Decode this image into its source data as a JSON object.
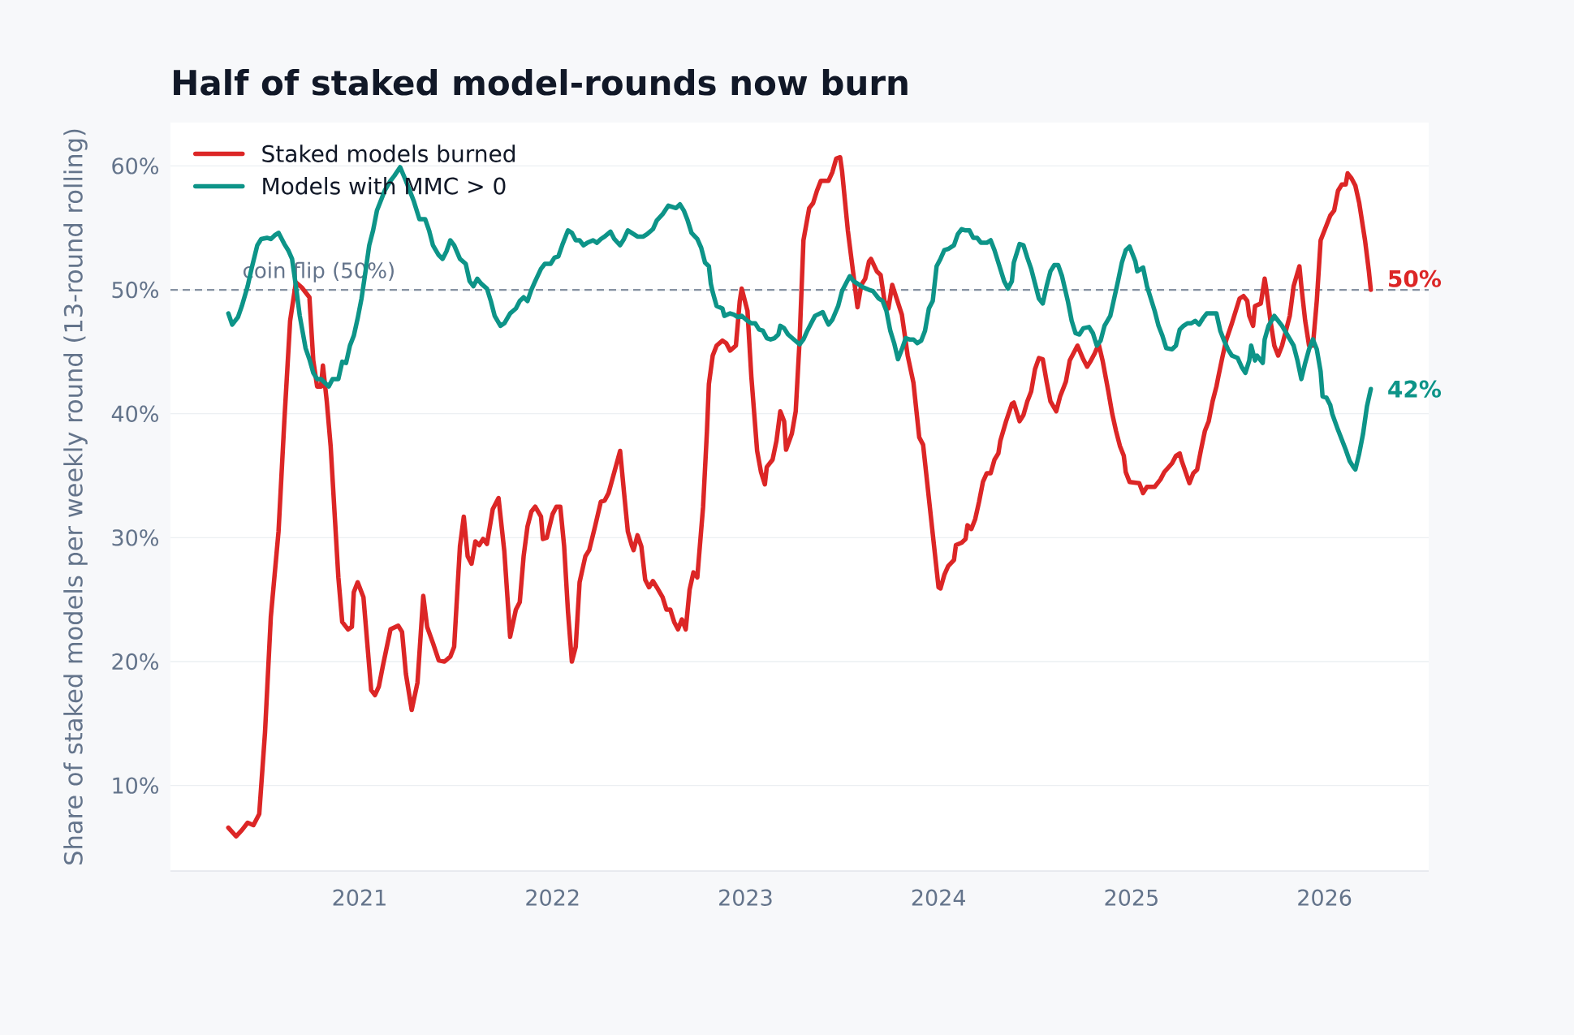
{
  "chart_data": {
    "type": "line",
    "title": "Half of staked model-rounds now burn",
    "ylabel": "Share of staked models per weekly round (13-round rolling)",
    "xlim": [
      2020.02,
      2026.54
    ],
    "xticks": [
      2021,
      2022,
      2023,
      2024,
      2025,
      2026
    ],
    "ylim": [
      3.1,
      63.5
    ],
    "yticks": [
      {
        "value": 10,
        "label": "10%"
      },
      {
        "value": 20,
        "label": "20%"
      },
      {
        "value": 30,
        "label": "30%"
      },
      {
        "value": 40,
        "label": "40%"
      },
      {
        "value": 50,
        "label": "50%"
      },
      {
        "value": 60,
        "label": "60%"
      }
    ],
    "grid": "y",
    "legend": "top left",
    "ref_lines": [
      {
        "axis": "y",
        "value": 50,
        "label": "coin flip (50%)",
        "color": "#8792a2",
        "line_style": "dashed"
      }
    ],
    "series": [
      {
        "name": "Staked models burned",
        "color": "#dc2626",
        "x": [
          2020.32,
          2020.36,
          2020.39,
          2020.42,
          2020.45,
          2020.48,
          2020.51,
          2020.54,
          2020.58,
          2020.61,
          2020.64,
          2020.67,
          2020.7,
          2020.74,
          2020.76,
          2020.78,
          2020.8,
          2020.81,
          2020.83,
          2020.85,
          2020.89,
          2020.91,
          2020.94,
          2020.96,
          2020.97,
          2020.99,
          2021.02,
          2021.06,
          2021.08,
          2021.1,
          2021.12,
          2021.16,
          2021.2,
          2021.22,
          2021.24,
          2021.27,
          2021.3,
          2021.33,
          2021.35,
          2021.38,
          2021.41,
          2021.44,
          2021.47,
          2021.49,
          2021.52,
          2021.54,
          2021.56,
          2021.58,
          2021.6,
          2021.62,
          2021.64,
          2021.66,
          2021.69,
          2021.72,
          2021.75,
          2021.78,
          2021.81,
          2021.83,
          2021.85,
          2021.87,
          2021.89,
          2021.91,
          2021.94,
          2021.95,
          2021.97,
          2022.0,
          2022.02,
          2022.04,
          2022.06,
          2022.08,
          2022.1,
          2022.12,
          2022.14,
          2022.17,
          2022.19,
          2022.22,
          2022.25,
          2022.27,
          2022.29,
          2022.32,
          2022.35,
          2022.37,
          2022.39,
          2022.41,
          2022.42,
          2022.44,
          2022.46,
          2022.48,
          2022.5,
          2022.52,
          2022.54,
          2022.57,
          2022.59,
          2022.61,
          2022.63,
          2022.65,
          2022.67,
          2022.69,
          2022.71,
          2022.73,
          2022.75,
          2022.78,
          2022.8,
          2022.81,
          2022.83,
          2022.85,
          2022.88,
          2022.9,
          2022.92,
          2022.95,
          2022.97,
          2022.98,
          2023.01,
          2023.03,
          2023.06,
          2023.08,
          2023.1,
          2023.11,
          2023.14,
          2023.16,
          2023.18,
          2023.2,
          2023.21,
          2023.24,
          2023.26,
          2023.28,
          2023.3,
          2023.33,
          2023.35,
          2023.37,
          2023.39,
          2023.43,
          2023.45,
          2023.47,
          2023.49,
          2023.5,
          2023.53,
          2023.56,
          2023.58,
          2023.6,
          2023.62,
          2023.64,
          2023.65,
          2023.68,
          2023.7,
          2023.72,
          2023.74,
          2023.76,
          2023.81,
          2023.84,
          2023.87,
          2023.9,
          2023.92,
          2023.97,
          2024.0,
          2024.01,
          2024.03,
          2024.05,
          2024.08,
          2024.09,
          2024.12,
          2024.14,
          2024.15,
          2024.17,
          2024.19,
          2024.21,
          2024.23,
          2024.25,
          2024.27,
          2024.29,
          2024.31,
          2024.32,
          2024.35,
          2024.38,
          2024.39,
          2024.42,
          2024.44,
          2024.46,
          2024.48,
          2024.5,
          2024.52,
          2024.54,
          2024.56,
          2024.58,
          2024.61,
          2024.63,
          2024.65,
          2024.66,
          2024.68,
          2024.7,
          2024.72,
          2024.75,
          2024.77,
          2024.79,
          2024.81,
          2024.83,
          2024.85,
          2024.88,
          2024.9,
          2024.92,
          2024.94,
          2024.96,
          2024.97,
          2024.99,
          2025.04,
          2025.06,
          2025.08,
          2025.12,
          2025.15,
          2025.17,
          2025.21,
          2025.23,
          2025.25,
          2025.26,
          2025.3,
          2025.32,
          2025.34,
          2025.36,
          2025.38,
          2025.4,
          2025.42,
          2025.44,
          2025.45,
          2025.47,
          2025.49,
          2025.52,
          2025.54,
          2025.56,
          2025.58,
          2025.6,
          2025.61,
          2025.63,
          2025.64,
          2025.67,
          2025.69,
          2025.7,
          2025.72,
          2025.74,
          2025.76,
          2025.78,
          2025.8,
          2025.82,
          2025.84,
          2025.87,
          2025.88,
          2025.9,
          2025.92,
          2025.94,
          2025.96,
          2025.98,
          2026.01,
          2026.03,
          2026.05,
          2026.07,
          2026.09,
          2026.11,
          2026.12,
          2026.14,
          2026.16,
          2026.18,
          2026.21,
          2026.23,
          2026.24
        ],
        "values": [
          6.6,
          5.9,
          6.4,
          7.0,
          6.8,
          7.7,
          14.3,
          23.6,
          30.5,
          39.4,
          47.5,
          50.6,
          50.2,
          49.4,
          44.3,
          42.2,
          42.2,
          43.9,
          41.0,
          37.4,
          26.8,
          23.2,
          22.6,
          22.8,
          25.6,
          26.4,
          25.2,
          17.7,
          17.3,
          18.0,
          19.6,
          22.6,
          22.9,
          22.4,
          19.0,
          16.1,
          18.3,
          25.3,
          22.8,
          21.5,
          20.1,
          20.0,
          20.4,
          21.2,
          29.3,
          31.7,
          28.5,
          27.9,
          29.7,
          29.4,
          29.9,
          29.5,
          32.3,
          33.2,
          28.9,
          22.0,
          24.2,
          24.8,
          28.5,
          30.9,
          32.1,
          32.5,
          31.7,
          29.9,
          30.0,
          31.9,
          32.5,
          32.5,
          29.3,
          24.0,
          20.0,
          21.2,
          26.4,
          28.5,
          29.0,
          30.9,
          32.9,
          33.0,
          33.6,
          35.3,
          37.0,
          33.7,
          30.5,
          29.4,
          29.0,
          30.2,
          29.3,
          26.6,
          26.0,
          26.5,
          26.0,
          25.2,
          24.2,
          24.2,
          23.2,
          22.6,
          23.4,
          22.6,
          25.8,
          27.2,
          26.8,
          32.5,
          38.6,
          42.4,
          44.7,
          45.5,
          45.9,
          45.7,
          45.1,
          45.5,
          49.1,
          50.1,
          48.3,
          43.0,
          37.0,
          35.3,
          34.3,
          35.7,
          36.3,
          37.8,
          40.2,
          39.4,
          37.1,
          38.4,
          40.2,
          45.9,
          54.0,
          56.6,
          57.0,
          58.0,
          58.8,
          58.8,
          59.5,
          60.6,
          60.7,
          59.6,
          54.8,
          51.1,
          48.6,
          50.4,
          50.9,
          52.3,
          52.5,
          51.5,
          51.2,
          49.1,
          48.5,
          50.4,
          48.0,
          44.7,
          42.5,
          38.1,
          37.5,
          30.3,
          26.0,
          25.9,
          27.0,
          27.7,
          28.2,
          29.4,
          29.6,
          29.9,
          31.0,
          30.7,
          31.5,
          32.9,
          34.5,
          35.2,
          35.2,
          36.3,
          36.8,
          37.8,
          39.4,
          40.8,
          40.9,
          39.4,
          39.9,
          41.0,
          41.8,
          43.6,
          44.5,
          44.4,
          42.6,
          41.0,
          40.2,
          41.4,
          42.2,
          42.6,
          44.3,
          44.9,
          45.5,
          44.4,
          43.8,
          44.3,
          44.9,
          45.6,
          44.3,
          41.8,
          40.0,
          38.6,
          37.4,
          36.6,
          35.3,
          34.5,
          34.4,
          33.6,
          34.1,
          34.1,
          34.7,
          35.3,
          36.0,
          36.6,
          36.8,
          36.2,
          34.4,
          35.2,
          35.5,
          37.1,
          38.6,
          39.4,
          41.0,
          42.2,
          43.0,
          44.5,
          45.9,
          47.3,
          48.3,
          49.3,
          49.5,
          49.1,
          47.9,
          47.1,
          48.7,
          48.9,
          50.9,
          49.9,
          47.5,
          45.5,
          44.7,
          45.5,
          46.7,
          47.9,
          50.3,
          51.9,
          50.3,
          47.5,
          45.5,
          45.5,
          49.1,
          54.0,
          55.2,
          56.0,
          56.4,
          58.0,
          58.5,
          58.5,
          59.4,
          59.0,
          58.4,
          57.0,
          54.0,
          51.5,
          50
        ],
        "value_labels": [
          null,
          null,
          null,
          null,
          null,
          null,
          null,
          null,
          null,
          null,
          null,
          null,
          null,
          null,
          null,
          null,
          null,
          null,
          null,
          null,
          null,
          null,
          null,
          null,
          null,
          null,
          null,
          null,
          null,
          null,
          null,
          null,
          null,
          null,
          null,
          null,
          null,
          null,
          null,
          null,
          null,
          null,
          null,
          null,
          null,
          null,
          null,
          null,
          null,
          null,
          null,
          null,
          null,
          null,
          null,
          null,
          null,
          null,
          null,
          null,
          null,
          null,
          null,
          null,
          null,
          null,
          null,
          null,
          null,
          null,
          null,
          null,
          null,
          null,
          null,
          null,
          null,
          null,
          null,
          null,
          null,
          null,
          null,
          null,
          null,
          null,
          null,
          null,
          null,
          null,
          null,
          null,
          null,
          null,
          null,
          null,
          null,
          null,
          null,
          null,
          null,
          null,
          null,
          null,
          null,
          null,
          null,
          null,
          null,
          null,
          null,
          null,
          null,
          null,
          null,
          null,
          null,
          null,
          null,
          null,
          null,
          null,
          null,
          null,
          null,
          null,
          null,
          null,
          null,
          null,
          null,
          null,
          null,
          null,
          null,
          null,
          null,
          null,
          null,
          null,
          null,
          null,
          null,
          null,
          null,
          null,
          null,
          null,
          null,
          null,
          null,
          null,
          null,
          null,
          null,
          null,
          null,
          null,
          null,
          null,
          null,
          null,
          null,
          null,
          null,
          null,
          null,
          null,
          null,
          null,
          null,
          null,
          null,
          null,
          null,
          null,
          null,
          null,
          null,
          null,
          null,
          null,
          null,
          null,
          null,
          null,
          null,
          null,
          null,
          null,
          null,
          null,
          null,
          null,
          null,
          null,
          null,
          null,
          null,
          null,
          null,
          null,
          null,
          null,
          null,
          null,
          null,
          null,
          null,
          null,
          null,
          null,
          null,
          null,
          null,
          null,
          null,
          null,
          null,
          null,
          null,
          null,
          null,
          null,
          null,
          null,
          null,
          null,
          null,
          null,
          null,
          null,
          null,
          null,
          null,
          null,
          null,
          null,
          null,
          null,
          null,
          null,
          null,
          null,
          null,
          null,
          null,
          null,
          null,
          null,
          null,
          null,
          null,
          null,
          null,
          null,
          null,
          null,
          null,
          null,
          null,
          null,
          "50%"
        ]
      },
      {
        "name": "Models with MMC > 0",
        "color": "#0d9488",
        "x": [
          2020.32,
          2020.34,
          2020.37,
          2020.39,
          2020.42,
          2020.44,
          2020.47,
          2020.49,
          2020.52,
          2020.54,
          2020.56,
          2020.58,
          2020.61,
          2020.63,
          2020.65,
          2020.67,
          2020.69,
          2020.72,
          2020.74,
          2020.76,
          2020.78,
          2020.8,
          2020.82,
          2020.84,
          2020.86,
          2020.89,
          2020.91,
          2020.93,
          2020.95,
          2020.97,
          2020.99,
          2021.01,
          2021.03,
          2021.05,
          2021.07,
          2021.09,
          2021.11,
          2021.13,
          2021.16,
          2021.18,
          2021.21,
          2021.24,
          2021.26,
          2021.28,
          2021.31,
          2021.34,
          2021.36,
          2021.38,
          2021.41,
          2021.43,
          2021.45,
          2021.47,
          2021.49,
          2021.52,
          2021.55,
          2021.57,
          2021.59,
          2021.61,
          2021.63,
          2021.66,
          2021.68,
          2021.7,
          2021.73,
          2021.75,
          2021.78,
          2021.81,
          2021.83,
          2021.85,
          2021.87,
          2021.89,
          2021.91,
          2021.94,
          2021.96,
          2021.99,
          2022.01,
          2022.03,
          2022.05,
          2022.08,
          2022.1,
          2022.12,
          2022.14,
          2022.16,
          2022.18,
          2022.21,
          2022.23,
          2022.25,
          2022.27,
          2022.3,
          2022.32,
          2022.35,
          2022.37,
          2022.39,
          2022.41,
          2022.44,
          2022.47,
          2022.49,
          2022.52,
          2022.54,
          2022.57,
          2022.6,
          2022.62,
          2022.64,
          2022.66,
          2022.68,
          2022.7,
          2022.72,
          2022.75,
          2022.77,
          2022.79,
          2022.81,
          2022.82,
          2022.83,
          2022.85,
          2022.88,
          2022.89,
          2022.92,
          2022.94,
          2022.96,
          2022.98,
          2023.01,
          2023.03,
          2023.05,
          2023.07,
          2023.09,
          2023.11,
          2023.13,
          2023.15,
          2023.17,
          2023.18,
          2023.2,
          2023.22,
          2023.25,
          2023.28,
          2023.3,
          2023.32,
          2023.34,
          2023.36,
          2023.4,
          2023.42,
          2023.43,
          2023.45,
          2023.48,
          2023.5,
          2023.54,
          2023.56,
          2023.58,
          2023.61,
          2023.64,
          2023.66,
          2023.69,
          2023.71,
          2023.73,
          2023.75,
          2023.77,
          2023.79,
          2023.81,
          2023.83,
          2023.85,
          2023.87,
          2023.89,
          2023.91,
          2023.93,
          2023.95,
          2023.97,
          2023.99,
          2024.01,
          2024.03,
          2024.05,
          2024.08,
          2024.1,
          2024.12,
          2024.14,
          2024.16,
          2024.18,
          2024.2,
          2024.22,
          2024.25,
          2024.27,
          2024.29,
          2024.31,
          2024.34,
          2024.36,
          2024.38,
          2024.39,
          2024.42,
          2024.44,
          2024.46,
          2024.48,
          2024.5,
          2024.52,
          2024.54,
          2024.56,
          2024.58,
          2024.6,
          2024.62,
          2024.64,
          2024.67,
          2024.69,
          2024.71,
          2024.73,
          2024.75,
          2024.78,
          2024.8,
          2024.82,
          2024.84,
          2024.86,
          2024.89,
          2024.91,
          2024.93,
          2024.95,
          2024.97,
          2024.99,
          2025.02,
          2025.03,
          2025.06,
          2025.08,
          2025.1,
          2025.12,
          2025.14,
          2025.16,
          2025.18,
          2025.21,
          2025.23,
          2025.25,
          2025.27,
          2025.29,
          2025.31,
          2025.33,
          2025.35,
          2025.37,
          2025.39,
          2025.44,
          2025.46,
          2025.48,
          2025.5,
          2025.52,
          2025.55,
          2025.57,
          2025.59,
          2025.61,
          2025.62,
          2025.64,
          2025.65,
          2025.68,
          2025.69,
          2025.71,
          2025.74,
          2025.76,
          2025.78,
          2025.81,
          2025.84,
          2025.86,
          2025.88,
          2025.9,
          2025.92,
          2025.94,
          2025.96,
          2025.98,
          2025.99,
          2026.01,
          2026.03,
          2026.04,
          2026.07,
          2026.09,
          2026.11,
          2026.13,
          2026.15,
          2026.16,
          2026.18,
          2026.2,
          2026.22,
          2026.24
        ],
        "values": [
          48.1,
          47.2,
          47.8,
          48.7,
          50.3,
          51.7,
          53.6,
          54.1,
          54.2,
          54.1,
          54.4,
          54.6,
          53.7,
          53.2,
          52.5,
          50.3,
          47.9,
          45.3,
          44.4,
          43.3,
          42.8,
          42.8,
          42.5,
          42.2,
          42.8,
          42.8,
          44.2,
          44.1,
          45.5,
          46.3,
          47.7,
          49.3,
          51.4,
          53.6,
          54.8,
          56.4,
          57.2,
          58.0,
          58.8,
          59.2,
          59.9,
          58.8,
          58.0,
          57.2,
          55.7,
          55.7,
          54.8,
          53.6,
          52.8,
          52.5,
          53.1,
          54.0,
          53.6,
          52.5,
          52.1,
          50.7,
          50.3,
          50.9,
          50.5,
          50.1,
          49.1,
          47.9,
          47.1,
          47.3,
          48.1,
          48.5,
          49.1,
          49.4,
          49.1,
          50.0,
          50.7,
          51.7,
          52.1,
          52.1,
          52.6,
          52.7,
          53.6,
          54.8,
          54.6,
          54.0,
          54.0,
          53.6,
          53.8,
          54.0,
          53.8,
          54.1,
          54.3,
          54.7,
          54.1,
          53.6,
          54.1,
          54.8,
          54.6,
          54.3,
          54.3,
          54.5,
          54.9,
          55.6,
          56.1,
          56.8,
          56.7,
          56.6,
          56.9,
          56.4,
          55.6,
          54.6,
          54.1,
          53.4,
          52.2,
          51.9,
          50.5,
          49.8,
          48.7,
          48.5,
          47.9,
          48.1,
          48.0,
          47.8,
          47.9,
          47.5,
          47.3,
          47.3,
          46.8,
          46.7,
          46.1,
          46.0,
          46.1,
          46.4,
          47.1,
          46.9,
          46.4,
          46.0,
          45.6,
          46.0,
          46.7,
          47.3,
          47.9,
          48.2,
          47.5,
          47.2,
          47.6,
          48.7,
          49.9,
          51.1,
          50.7,
          50.5,
          50.2,
          50.0,
          49.9,
          49.3,
          49.1,
          48.3,
          46.7,
          45.7,
          44.4,
          45.2,
          46.1,
          46.0,
          46.0,
          45.7,
          45.9,
          46.7,
          48.5,
          49.1,
          51.9,
          52.5,
          53.2,
          53.3,
          53.6,
          54.5,
          54.9,
          54.8,
          54.8,
          54.2,
          54.2,
          53.8,
          53.8,
          54.0,
          53.2,
          52.2,
          50.7,
          50.1,
          50.7,
          52.2,
          53.7,
          53.6,
          52.6,
          51.7,
          50.5,
          49.3,
          48.9,
          50.3,
          51.5,
          52.0,
          52.0,
          51.1,
          49.1,
          47.5,
          46.5,
          46.4,
          46.9,
          47.0,
          46.5,
          45.5,
          45.9,
          47.1,
          47.9,
          49.3,
          50.7,
          52.2,
          53.2,
          53.5,
          52.3,
          51.5,
          51.8,
          50.3,
          49.3,
          48.3,
          47.1,
          46.3,
          45.3,
          45.2,
          45.5,
          46.8,
          47.1,
          47.3,
          47.3,
          47.5,
          47.2,
          47.7,
          48.1,
          48.1,
          46.7,
          45.9,
          45.2,
          44.7,
          44.5,
          43.8,
          43.3,
          44.3,
          45.5,
          44.3,
          44.7,
          44.1,
          46.0,
          47.1,
          47.9,
          47.5,
          47.1,
          46.3,
          45.5,
          44.3,
          42.8,
          44.1,
          45.2,
          46.0,
          45.2,
          43.4,
          41.4,
          41.3,
          40.7,
          40.0,
          38.7,
          37.9,
          37.1,
          36.2,
          35.7,
          35.5,
          36.8,
          38.4,
          40.6,
          42
        ],
        "value_labels": [
          null,
          null,
          null,
          null,
          null,
          null,
          null,
          null,
          null,
          null,
          null,
          null,
          null,
          null,
          null,
          null,
          null,
          null,
          null,
          null,
          null,
          null,
          null,
          null,
          null,
          null,
          null,
          null,
          null,
          null,
          null,
          null,
          null,
          null,
          null,
          null,
          null,
          null,
          null,
          null,
          null,
          null,
          null,
          null,
          null,
          null,
          null,
          null,
          null,
          null,
          null,
          null,
          null,
          null,
          null,
          null,
          null,
          null,
          null,
          null,
          null,
          null,
          null,
          null,
          null,
          null,
          null,
          null,
          null,
          null,
          null,
          null,
          null,
          null,
          null,
          null,
          null,
          null,
          null,
          null,
          null,
          null,
          null,
          null,
          null,
          null,
          null,
          null,
          null,
          null,
          null,
          null,
          null,
          null,
          null,
          null,
          null,
          null,
          null,
          null,
          null,
          null,
          null,
          null,
          null,
          null,
          null,
          null,
          null,
          null,
          null,
          null,
          null,
          null,
          null,
          null,
          null,
          null,
          null,
          null,
          null,
          null,
          null,
          null,
          null,
          null,
          null,
          null,
          null,
          null,
          null,
          null,
          null,
          null,
          null,
          null,
          null,
          null,
          null,
          null,
          null,
          null,
          null,
          null,
          null,
          null,
          null,
          null,
          null,
          null,
          null,
          null,
          null,
          null,
          null,
          null,
          null,
          null,
          null,
          null,
          null,
          null,
          null,
          null,
          null,
          null,
          null,
          null,
          null,
          null,
          null,
          null,
          null,
          null,
          null,
          null,
          null,
          null,
          null,
          null,
          null,
          null,
          null,
          null,
          null,
          null,
          null,
          null,
          null,
          null,
          null,
          null,
          null,
          null,
          null,
          null,
          null,
          null,
          null,
          null,
          null,
          null,
          null,
          null,
          null,
          null,
          null,
          null,
          null,
          null,
          null,
          null,
          null,
          null,
          null,
          null,
          null,
          null,
          null,
          null,
          null,
          null,
          null,
          null,
          null,
          null,
          null,
          null,
          null,
          null,
          null,
          null,
          null,
          null,
          null,
          null,
          null,
          null,
          null,
          null,
          null,
          null,
          null,
          null,
          null,
          null,
          null,
          null,
          null,
          null,
          null,
          null,
          null,
          null,
          null,
          null,
          null,
          null,
          null,
          null,
          null,
          null,
          null,
          null,
          null,
          null,
          null,
          null,
          null,
          null,
          null,
          "42%"
        ]
      }
    ]
  }
}
